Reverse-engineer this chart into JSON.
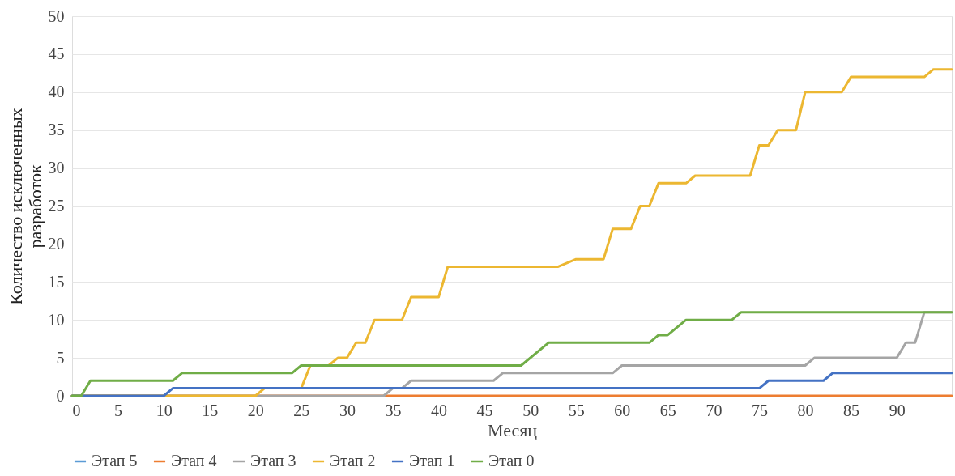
{
  "chart_data": {
    "type": "line",
    "xlabel": "Месяц",
    "ylabel": "Количество исключенных разработок",
    "xlim": [
      0,
      96
    ],
    "xticks": [
      0,
      5,
      10,
      15,
      20,
      25,
      30,
      35,
      40,
      45,
      50,
      55,
      60,
      65,
      70,
      75,
      80,
      85,
      90
    ],
    "ylim": [
      0,
      50
    ],
    "yticks": [
      0,
      5,
      10,
      15,
      20,
      25,
      30,
      35,
      40,
      45,
      50
    ],
    "grid": "y",
    "legend": "bottom",
    "marker": "none",
    "line_style": "solid",
    "series": [
      {
        "name": "Этап 5",
        "color": "#5b9bd5"
      },
      {
        "name": "Этап 4",
        "color": "#ed7d31",
        "x": [
          0,
          96
        ],
        "values": [
          0,
          0
        ]
      },
      {
        "name": "Этап 3",
        "color": "#a5a5a5",
        "x": [
          0,
          34,
          35,
          36,
          37,
          46,
          47,
          59,
          60,
          80,
          81,
          90,
          91,
          92,
          93,
          96
        ],
        "values": [
          0,
          0,
          1,
          1,
          2,
          2,
          3,
          3,
          4,
          4,
          5,
          5,
          7,
          7,
          11,
          11
        ]
      },
      {
        "name": "Этап 2",
        "color": "#ecb731",
        "x": [
          0,
          20,
          21,
          25,
          26,
          28,
          29,
          30,
          31,
          32,
          33,
          36,
          37,
          40,
          41,
          53,
          55,
          58,
          59,
          61,
          62,
          63,
          64,
          67,
          68,
          74,
          75,
          76,
          77,
          79,
          80,
          84,
          85,
          93,
          94,
          96
        ],
        "values": [
          0,
          0,
          1,
          1,
          4,
          4,
          5,
          5,
          7,
          7,
          10,
          10,
          13,
          13,
          17,
          17,
          18,
          18,
          22,
          22,
          25,
          25,
          28,
          28,
          29,
          29,
          33,
          33,
          35,
          35,
          40,
          40,
          42,
          42,
          43,
          43
        ]
      },
      {
        "name": "Этап 1",
        "color": "#4472c4",
        "x": [
          0,
          10,
          11,
          75,
          76,
          82,
          83,
          96
        ],
        "values": [
          0,
          0,
          1,
          1,
          2,
          2,
          3,
          3
        ]
      },
      {
        "name": "Этап 0",
        "color": "#70ad47",
        "x": [
          0,
          1,
          2,
          11,
          12,
          24,
          25,
          49,
          52,
          63,
          64,
          65,
          67,
          72,
          73,
          96
        ],
        "values": [
          0,
          0,
          2,
          2,
          3,
          3,
          4,
          4,
          7,
          7,
          8,
          8,
          10,
          10,
          11,
          11
        ]
      }
    ]
  }
}
